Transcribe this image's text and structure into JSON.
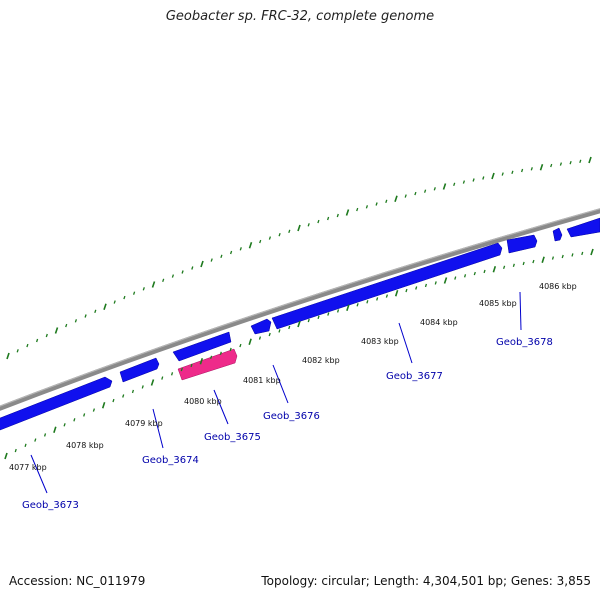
{
  "title": "Geobacter sp. FRC-32, complete genome",
  "footer": {
    "accession": "Accession: NC_011979",
    "stats": "Topology: circular; Length: 4,304,501 bp; Genes: 3,855"
  },
  "colors": {
    "backbone": "#8a8a8a",
    "gene": "#1010ee",
    "highlight_gene": "#ee2a8a",
    "ticks": "#1e7a1e",
    "gene_label": "#0000aa"
  },
  "scale_labels": [
    "4077 kbp",
    "4078 kbp",
    "4079 kbp",
    "4080 kbp",
    "4081 kbp",
    "4082 kbp",
    "4083 kbp",
    "4084 kbp",
    "4085 kbp",
    "4086 kbp"
  ],
  "genes": [
    {
      "name": "Geob_3673",
      "highlight": false
    },
    {
      "name": "Geob_3674",
      "highlight": false
    },
    {
      "name": "Geob_3675",
      "highlight": true
    },
    {
      "name": "Geob_3676",
      "highlight": false
    },
    {
      "name": "Geob_3677",
      "highlight": false
    },
    {
      "name": "Geob_3678",
      "highlight": false
    }
  ]
}
